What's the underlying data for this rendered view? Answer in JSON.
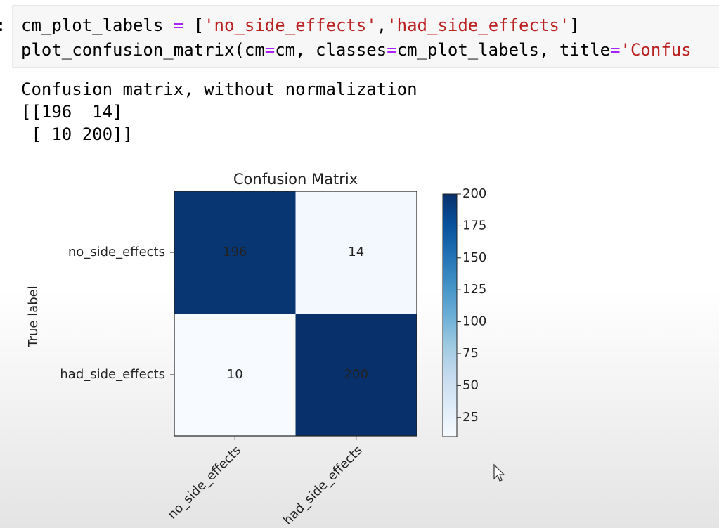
{
  "code_cell": {
    "prompt": ":",
    "lines": [
      [
        {
          "text": "cm_plot_labels ",
          "color": "#000000"
        },
        {
          "text": "=",
          "color": "#aa22ff"
        },
        {
          "text": " [",
          "color": "#000000"
        },
        {
          "text": "'no_side_effects'",
          "color": "#ba2121"
        },
        {
          "text": ",",
          "color": "#000000"
        },
        {
          "text": "'had_side_effects'",
          "color": "#ba2121"
        },
        {
          "text": "]",
          "color": "#000000"
        }
      ],
      [
        {
          "text": "plot_confusion_matrix(cm",
          "color": "#000000"
        },
        {
          "text": "=",
          "color": "#aa22ff"
        },
        {
          "text": "cm, classes",
          "color": "#000000"
        },
        {
          "text": "=",
          "color": "#aa22ff"
        },
        {
          "text": "cm_plot_labels, title",
          "color": "#000000"
        },
        {
          "text": "=",
          "color": "#aa22ff"
        },
        {
          "text": "'Confus",
          "color": "#ba2121"
        }
      ]
    ]
  },
  "output": {
    "lines": [
      "Confusion matrix, without normalization",
      "[[196  14]",
      " [ 10 200]]"
    ]
  },
  "chart_data": {
    "type": "heatmap",
    "title": "Confusion Matrix",
    "ylabel": "True label",
    "x_categories": [
      "no_side_effects",
      "had_side_effects"
    ],
    "y_categories": [
      "no_side_effects",
      "had_side_effects"
    ],
    "values": [
      [
        196,
        14
      ],
      [
        10,
        200
      ]
    ],
    "colormap": [
      "#f7fbff",
      "#deebf7",
      "#c6dbef",
      "#9ecae1",
      "#6baed6",
      "#4292c6",
      "#2171b5",
      "#08519c",
      "#08306b"
    ],
    "clim": [
      10,
      200
    ],
    "cticks": [
      25,
      50,
      75,
      100,
      125,
      150,
      175,
      200
    ]
  }
}
